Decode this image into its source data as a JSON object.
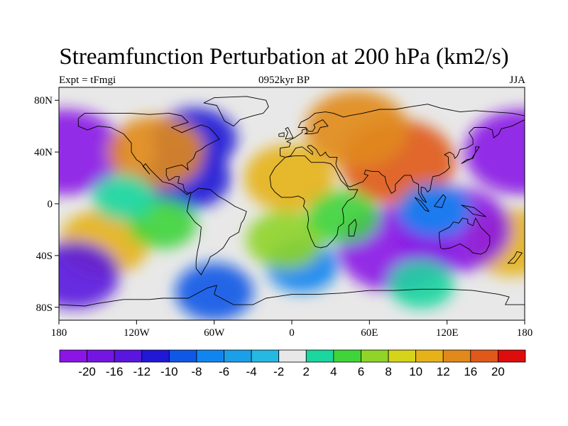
{
  "title": "Streamfunction Perturbation at 200 hPa (km2/s)",
  "subtitle_left": "Expt = tFmgi",
  "subtitle_center": "0952kyr BP",
  "subtitle_right": "JJA",
  "map": {
    "lat_ticks": [
      {
        "lat": 80,
        "label": "80N"
      },
      {
        "lat": 40,
        "label": "40N"
      },
      {
        "lat": 0,
        "label": "0"
      },
      {
        "lat": -40,
        "label": "40S"
      },
      {
        "lat": -80,
        "label": "80S"
      }
    ],
    "lon_ticks": [
      {
        "lon": -180,
        "label": "180"
      },
      {
        "lon": -120,
        "label": "120W"
      },
      {
        "lon": -60,
        "label": "60W"
      },
      {
        "lon": 0,
        "label": "0"
      },
      {
        "lon": 60,
        "label": "60E"
      },
      {
        "lon": 120,
        "label": "120E"
      },
      {
        "lon": 180,
        "label": "180"
      }
    ],
    "anomalies": [
      {
        "lon": -175,
        "lat": 40,
        "value": -20
      },
      {
        "lon": 178,
        "lat": 40,
        "value": -20
      },
      {
        "lon": -75,
        "lat": 50,
        "value": -10
      },
      {
        "lon": -80,
        "lat": 20,
        "value": -10
      },
      {
        "lon": -105,
        "lat": 40,
        "value": 14
      },
      {
        "lon": 82,
        "lat": 32,
        "value": 20
      },
      {
        "lon": 50,
        "lat": 58,
        "value": 16
      },
      {
        "lon": -2,
        "lat": 20,
        "value": 12
      },
      {
        "lon": -145,
        "lat": -30,
        "value": 12
      },
      {
        "lon": 170,
        "lat": -30,
        "value": 12
      },
      {
        "lon": 80,
        "lat": -35,
        "value": -20
      },
      {
        "lon": 125,
        "lat": -20,
        "value": -20
      },
      {
        "lon": 110,
        "lat": -5,
        "value": -6
      },
      {
        "lon": -60,
        "lat": -68,
        "value": -8
      },
      {
        "lon": 100,
        "lat": -62,
        "value": 4
      },
      {
        "lon": 8,
        "lat": -48,
        "value": -6
      },
      {
        "lon": -5,
        "lat": -28,
        "value": 8
      },
      {
        "lon": 40,
        "lat": -10,
        "value": 6
      },
      {
        "lon": -100,
        "lat": -15,
        "value": 5
      },
      {
        "lon": -130,
        "lat": 5,
        "value": 3
      },
      {
        "lon": -168,
        "lat": -55,
        "value": -12
      }
    ]
  },
  "colorbar": {
    "colors": [
      "#8a15e5",
      "#7515e2",
      "#5a15df",
      "#2018d6",
      "#0f57e5",
      "#1185ef",
      "#1b9fe8",
      "#24b8e2",
      "#e8e8e8",
      "#1bd69e",
      "#3fd43a",
      "#8fd427",
      "#d6d41a",
      "#e6b21a",
      "#e1891b",
      "#e0591b",
      "#de0c0c"
    ],
    "labels": [
      "-20",
      "-16",
      "-12",
      "-10",
      "-8",
      "-6",
      "-4",
      "-2",
      "2",
      "4",
      "6",
      "8",
      "10",
      "12",
      "16",
      "20"
    ]
  }
}
